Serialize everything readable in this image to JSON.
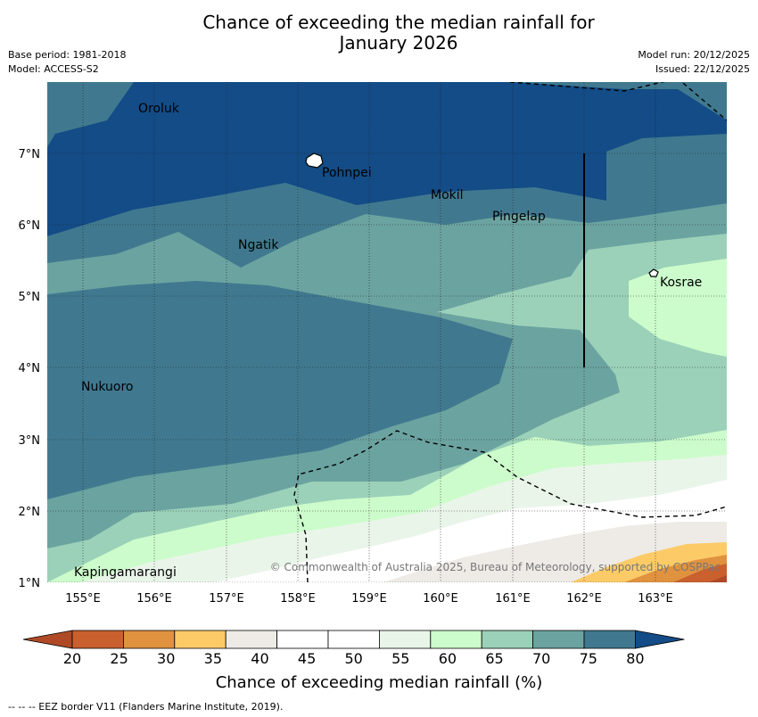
{
  "header": {
    "title_line1": "Chance of exceeding the median rainfall for",
    "title_line2": "January 2026",
    "base_period": "Base period: 1981-2018",
    "model": "Model: ACCESS-S2",
    "model_run": "Model run: 20/12/2025",
    "issued": "Issued: 22/12/2025"
  },
  "map": {
    "lon_labels": [
      "155°E",
      "156°E",
      "157°E",
      "158°E",
      "159°E",
      "160°E",
      "161°E",
      "162°E",
      "163°E"
    ],
    "lat_labels": [
      "7°N",
      "6°N",
      "5°N",
      "4°N",
      "3°N",
      "2°N",
      "1°N"
    ],
    "places": [
      "Oroluk",
      "Pohnpei",
      "Mokil",
      "Pingelap",
      "Ngatik",
      "Kosrae",
      "Nukuoro",
      "Kapingamarangi"
    ],
    "copyright": "© Commonwealth of Australia 2025, Bureau of Meteorology, supported by COSPPac"
  },
  "colorbar": {
    "ticks": [
      "20",
      "25",
      "30",
      "35",
      "40",
      "45",
      "50",
      "55",
      "60",
      "65",
      "70",
      "75",
      "80"
    ],
    "colors": [
      "#b04a26",
      "#c9602e",
      "#e0923f",
      "#fccb68",
      "#eeebe6",
      "#ffffff",
      "#ffffff",
      "#eaf5ea",
      "#ccfccb",
      "#9bd1b9",
      "#6ba3a0",
      "#40798f",
      "#134c86"
    ],
    "title": "Chance of exceeding median rainfall (%)"
  },
  "footer": {
    "legend": "--  --  -- EEZ border V11 (Flanders Marine Institute, 2019)."
  }
}
